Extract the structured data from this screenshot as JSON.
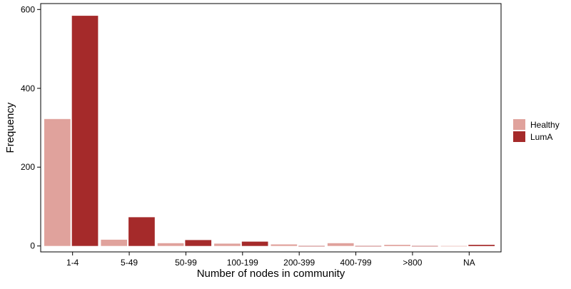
{
  "chart_data": {
    "type": "bar",
    "xlabel": "Number of nodes in community",
    "ylabel": "Frequency",
    "categories": [
      "1-4",
      "5-49",
      "50-99",
      "100-199",
      "200-399",
      "400-799",
      ">800",
      "NA"
    ],
    "series": [
      {
        "name": "Healthy",
        "color": "#e0a29c",
        "values": [
          322,
          16,
          7,
          6,
          4,
          7,
          3,
          0
        ]
      },
      {
        "name": "LumA",
        "color": "#a52a2a",
        "values": [
          584,
          73,
          15,
          11,
          0,
          0,
          0,
          3
        ]
      }
    ],
    "ylim": [
      -15,
      615
    ],
    "yticks": [
      0,
      200,
      400,
      600
    ],
    "grid": false,
    "legend": {
      "position": "right"
    }
  }
}
